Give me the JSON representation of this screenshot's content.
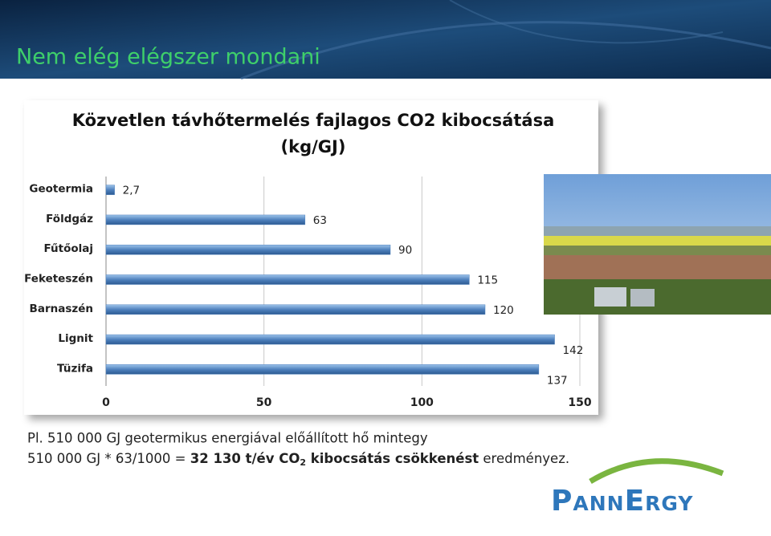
{
  "slide_title": "Nem elég elégszer mondani",
  "chart_data": {
    "type": "hbar",
    "title": "Közvetlen távhőtermelés fajlagos CO2 kibocsátása",
    "subtitle": "(kg/GJ)",
    "categories": [
      "Geotermia",
      "Földgáz",
      "Fűtőolaj",
      "Feketeszén",
      "Barnaszén",
      "Lignit",
      "Tüzifa"
    ],
    "values": [
      2.7,
      63,
      90,
      115,
      120,
      142,
      137
    ],
    "value_labels": [
      "2,7",
      "63",
      "90",
      "115",
      "120",
      "142",
      "137"
    ],
    "color": "#4f81bd",
    "xlim": [
      0,
      150
    ],
    "xticks": [
      0,
      50,
      100,
      150
    ],
    "grid": true
  },
  "body": {
    "line1": "Pl. 510 000 GJ geotermikus energiával előállított hő mintegy",
    "line2": {
      "plain1": "510 000 GJ * 63/1000 = ",
      "bold1": "32 130 t/év CO",
      "sub": "2",
      "bold2": " kibocsátás csökkenést",
      "plain2": " eredményez."
    }
  },
  "logo": "PannErgy"
}
